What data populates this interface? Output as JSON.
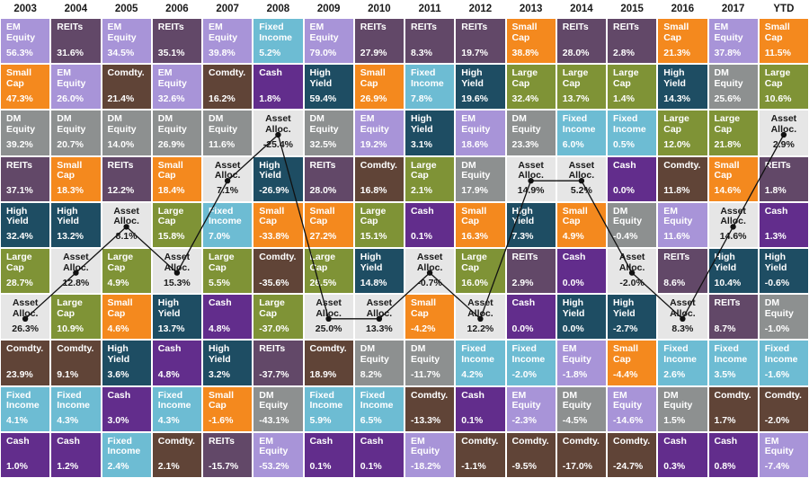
{
  "chart_data": {
    "type": "table",
    "years": [
      "2003",
      "2004",
      "2005",
      "2006",
      "2007",
      "2008",
      "2009",
      "2010",
      "2011",
      "2012",
      "2013",
      "2014",
      "2015",
      "2016",
      "2017",
      "YTD"
    ],
    "asset_colors": {
      "EM Equity": "#a894d8",
      "REITs": "#624868",
      "Small Cap": "#f4891e",
      "Comdty.": "#604437",
      "DM Equity": "#8d9090",
      "High Yield": "#1e4d63",
      "Large Cap": "#7f9336",
      "Asset Alloc.": "#e6e6e6",
      "Fixed Income": "#6dbcd3",
      "Cash": "#622d8c"
    },
    "columns": [
      {
        "year": "2003",
        "cells": [
          [
            "EM\nEquity",
            "56.3%"
          ],
          [
            "Small\nCap",
            "47.3%"
          ],
          [
            "DM\nEquity",
            "39.2%"
          ],
          [
            "REITs",
            "37.1%"
          ],
          [
            "High\nYield",
            "32.4%"
          ],
          [
            "Large\nCap",
            "28.7%"
          ],
          [
            "Asset\nAlloc.",
            "26.3%"
          ],
          [
            "Comdty.",
            "23.9%"
          ],
          [
            "Fixed\nIncome",
            "4.1%"
          ],
          [
            "Cash",
            "1.0%"
          ]
        ]
      },
      {
        "year": "2004",
        "cells": [
          [
            "REITs",
            "31.6%"
          ],
          [
            "EM\nEquity",
            "26.0%"
          ],
          [
            "DM\nEquity",
            "20.7%"
          ],
          [
            "Small\nCap",
            "18.3%"
          ],
          [
            "High\nYield",
            "13.2%"
          ],
          [
            "Asset\nAlloc.",
            "12.8%"
          ],
          [
            "Large\nCap",
            "10.9%"
          ],
          [
            "Comdty.",
            "9.1%"
          ],
          [
            "Fixed\nIncome",
            "4.3%"
          ],
          [
            "Cash",
            "1.2%"
          ]
        ]
      },
      {
        "year": "2005",
        "cells": [
          [
            "EM\nEquity",
            "34.5%"
          ],
          [
            "Comdty.",
            "21.4%"
          ],
          [
            "DM\nEquity",
            "14.0%"
          ],
          [
            "REITs",
            "12.2%"
          ],
          [
            "Asset\nAlloc.",
            "8.1%"
          ],
          [
            "Large\nCap",
            "4.9%"
          ],
          [
            "Small\nCap",
            "4.6%"
          ],
          [
            "High\nYield",
            "3.6%"
          ],
          [
            "Cash",
            "3.0%"
          ],
          [
            "Fixed\nIncome",
            "2.4%"
          ]
        ]
      },
      {
        "year": "2006",
        "cells": [
          [
            "REITs",
            "35.1%"
          ],
          [
            "EM\nEquity",
            "32.6%"
          ],
          [
            "DM\nEquity",
            "26.9%"
          ],
          [
            "Small\nCap",
            "18.4%"
          ],
          [
            "Large\nCap",
            "15.8%"
          ],
          [
            "Asset\nAlloc.",
            "15.3%"
          ],
          [
            "High\nYield",
            "13.7%"
          ],
          [
            "Cash",
            "4.8%"
          ],
          [
            "Fixed\nIncome",
            "4.3%"
          ],
          [
            "Comdty.",
            "2.1%"
          ]
        ]
      },
      {
        "year": "2007",
        "cells": [
          [
            "EM\nEquity",
            "39.8%"
          ],
          [
            "Comdty.",
            "16.2%"
          ],
          [
            "DM\nEquity",
            "11.6%"
          ],
          [
            "Asset\nAlloc.",
            "7.1%"
          ],
          [
            "Fixed\nIncome",
            "7.0%"
          ],
          [
            "Large\nCap",
            "5.5%"
          ],
          [
            "Cash",
            "4.8%"
          ],
          [
            "High\nYield",
            "3.2%"
          ],
          [
            "Small\nCap",
            "-1.6%"
          ],
          [
            "REITs",
            "-15.7%"
          ]
        ]
      },
      {
        "year": "2008",
        "cells": [
          [
            "Fixed\nIncome",
            "5.2%"
          ],
          [
            "Cash",
            "1.8%"
          ],
          [
            "Asset\nAlloc.",
            "-25.4%"
          ],
          [
            "High\nYield",
            "-26.9%"
          ],
          [
            "Small\nCap",
            "-33.8%"
          ],
          [
            "Comdty.",
            "-35.6%"
          ],
          [
            "Large\nCap",
            "-37.0%"
          ],
          [
            "REITs",
            "-37.7%"
          ],
          [
            "DM\nEquity",
            "-43.1%"
          ],
          [
            "EM\nEquity",
            "-53.2%"
          ]
        ]
      },
      {
        "year": "2009",
        "cells": [
          [
            "EM\nEquity",
            "79.0%"
          ],
          [
            "High\nYield",
            "59.4%"
          ],
          [
            "DM\nEquity",
            "32.5%"
          ],
          [
            "REITs",
            "28.0%"
          ],
          [
            "Small\nCap",
            "27.2%"
          ],
          [
            "Large\nCap",
            "26.5%"
          ],
          [
            "Asset\nAlloc.",
            "25.0%"
          ],
          [
            "Comdty.",
            "18.9%"
          ],
          [
            "Fixed\nIncome",
            "5.9%"
          ],
          [
            "Cash",
            "0.1%"
          ]
        ]
      },
      {
        "year": "2010",
        "cells": [
          [
            "REITs",
            "27.9%"
          ],
          [
            "Small\nCap",
            "26.9%"
          ],
          [
            "EM\nEquity",
            "19.2%"
          ],
          [
            "Comdty.",
            "16.8%"
          ],
          [
            "Large\nCap",
            "15.1%"
          ],
          [
            "High\nYield",
            "14.8%"
          ],
          [
            "Asset\nAlloc.",
            "13.3%"
          ],
          [
            "DM\nEquity",
            "8.2%"
          ],
          [
            "Fixed\nIncome",
            "6.5%"
          ],
          [
            "Cash",
            "0.1%"
          ]
        ]
      },
      {
        "year": "2011",
        "cells": [
          [
            "REITs",
            "8.3%"
          ],
          [
            "Fixed\nIncome",
            "7.8%"
          ],
          [
            "High\nYield",
            "3.1%"
          ],
          [
            "Large\nCap",
            "2.1%"
          ],
          [
            "Cash",
            "0.1%"
          ],
          [
            "Asset\nAlloc.",
            "-0.7%"
          ],
          [
            "Small\nCap",
            "-4.2%"
          ],
          [
            "DM\nEquity",
            "-11.7%"
          ],
          [
            "Comdty.",
            "-13.3%"
          ],
          [
            "EM\nEquity",
            "-18.2%"
          ]
        ]
      },
      {
        "year": "2012",
        "cells": [
          [
            "REITs",
            "19.7%"
          ],
          [
            "High\nYield",
            "19.6%"
          ],
          [
            "EM\nEquity",
            "18.6%"
          ],
          [
            "DM\nEquity",
            "17.9%"
          ],
          [
            "Small\nCap",
            "16.3%"
          ],
          [
            "Large\nCap",
            "16.0%"
          ],
          [
            "Asset\nAlloc.",
            "12.2%"
          ],
          [
            "Fixed\nIncome",
            "4.2%"
          ],
          [
            "Cash",
            "0.1%"
          ],
          [
            "Comdty.",
            "-1.1%"
          ]
        ]
      },
      {
        "year": "2013",
        "cells": [
          [
            "Small\nCap",
            "38.8%"
          ],
          [
            "Large\nCap",
            "32.4%"
          ],
          [
            "DM\nEquity",
            "23.3%"
          ],
          [
            "Asset\nAlloc.",
            "14.9%"
          ],
          [
            "High\nYield",
            "7.3%"
          ],
          [
            "REITs",
            "2.9%"
          ],
          [
            "Cash",
            "0.0%"
          ],
          [
            "Fixed\nIncome",
            "-2.0%"
          ],
          [
            "EM\nEquity",
            "-2.3%"
          ],
          [
            "Comdty.",
            "-9.5%"
          ]
        ]
      },
      {
        "year": "2014",
        "cells": [
          [
            "REITs",
            "28.0%"
          ],
          [
            "Large\nCap",
            "13.7%"
          ],
          [
            "Fixed\nIncome",
            "6.0%"
          ],
          [
            "Asset\nAlloc.",
            "5.2%"
          ],
          [
            "Small\nCap",
            "4.9%"
          ],
          [
            "Cash",
            "0.0%"
          ],
          [
            "High\nYield",
            "0.0%"
          ],
          [
            "EM\nEquity",
            "-1.8%"
          ],
          [
            "DM\nEquity",
            "-4.5%"
          ],
          [
            "Comdty.",
            "-17.0%"
          ]
        ]
      },
      {
        "year": "2015",
        "cells": [
          [
            "REITs",
            "2.8%"
          ],
          [
            "Large\nCap",
            "1.4%"
          ],
          [
            "Fixed\nIncome",
            "0.5%"
          ],
          [
            "Cash",
            "0.0%"
          ],
          [
            "DM\nEquity",
            "-0.4%"
          ],
          [
            "Asset\nAlloc.",
            "-2.0%"
          ],
          [
            "High\nYield",
            "-2.7%"
          ],
          [
            "Small\nCap",
            "-4.4%"
          ],
          [
            "EM\nEquity",
            "-14.6%"
          ],
          [
            "Comdty.",
            "-24.7%"
          ]
        ]
      },
      {
        "year": "2016",
        "cells": [
          [
            "Small\nCap",
            "21.3%"
          ],
          [
            "High\nYield",
            "14.3%"
          ],
          [
            "Large\nCap",
            "12.0%"
          ],
          [
            "Comdty.",
            "11.8%"
          ],
          [
            "EM\nEquity",
            "11.6%"
          ],
          [
            "REITs",
            "8.6%"
          ],
          [
            "Asset\nAlloc.",
            "8.3%"
          ],
          [
            "Fixed\nIncome",
            "2.6%"
          ],
          [
            "DM\nEquity",
            "1.5%"
          ],
          [
            "Cash",
            "0.3%"
          ]
        ]
      },
      {
        "year": "2017",
        "cells": [
          [
            "EM\nEquity",
            "37.8%"
          ],
          [
            "DM\nEquity",
            "25.6%"
          ],
          [
            "Large\nCap",
            "21.8%"
          ],
          [
            "Small\nCap",
            "14.6%"
          ],
          [
            "Asset\nAlloc.",
            "14.6%"
          ],
          [
            "High\nYield",
            "10.4%"
          ],
          [
            "REITs",
            "8.7%"
          ],
          [
            "Fixed\nIncome",
            "3.5%"
          ],
          [
            "Comdty.",
            "1.7%"
          ],
          [
            "Cash",
            "0.8%"
          ]
        ]
      },
      {
        "year": "YTD",
        "cells": [
          [
            "Small\nCap",
            "11.5%"
          ],
          [
            "Large\nCap",
            "10.6%"
          ],
          [
            "Asset\nAlloc.",
            "2.9%"
          ],
          [
            "REITs",
            "1.8%"
          ],
          [
            "Cash",
            "1.3%"
          ],
          [
            "High\nYield",
            "-0.6%"
          ],
          [
            "DM\nEquity",
            "-1.0%"
          ],
          [
            "Fixed\nIncome",
            "-1.6%"
          ],
          [
            "Comdty.",
            "-2.0%"
          ],
          [
            "EM\nEquity",
            "-7.4%"
          ]
        ]
      }
    ],
    "asset_alloc_rank": [
      7,
      6,
      5,
      6,
      4,
      3,
      7,
      7,
      6,
      7,
      4,
      4,
      6,
      7,
      5,
      3
    ],
    "legend": "none",
    "grid": true
  }
}
